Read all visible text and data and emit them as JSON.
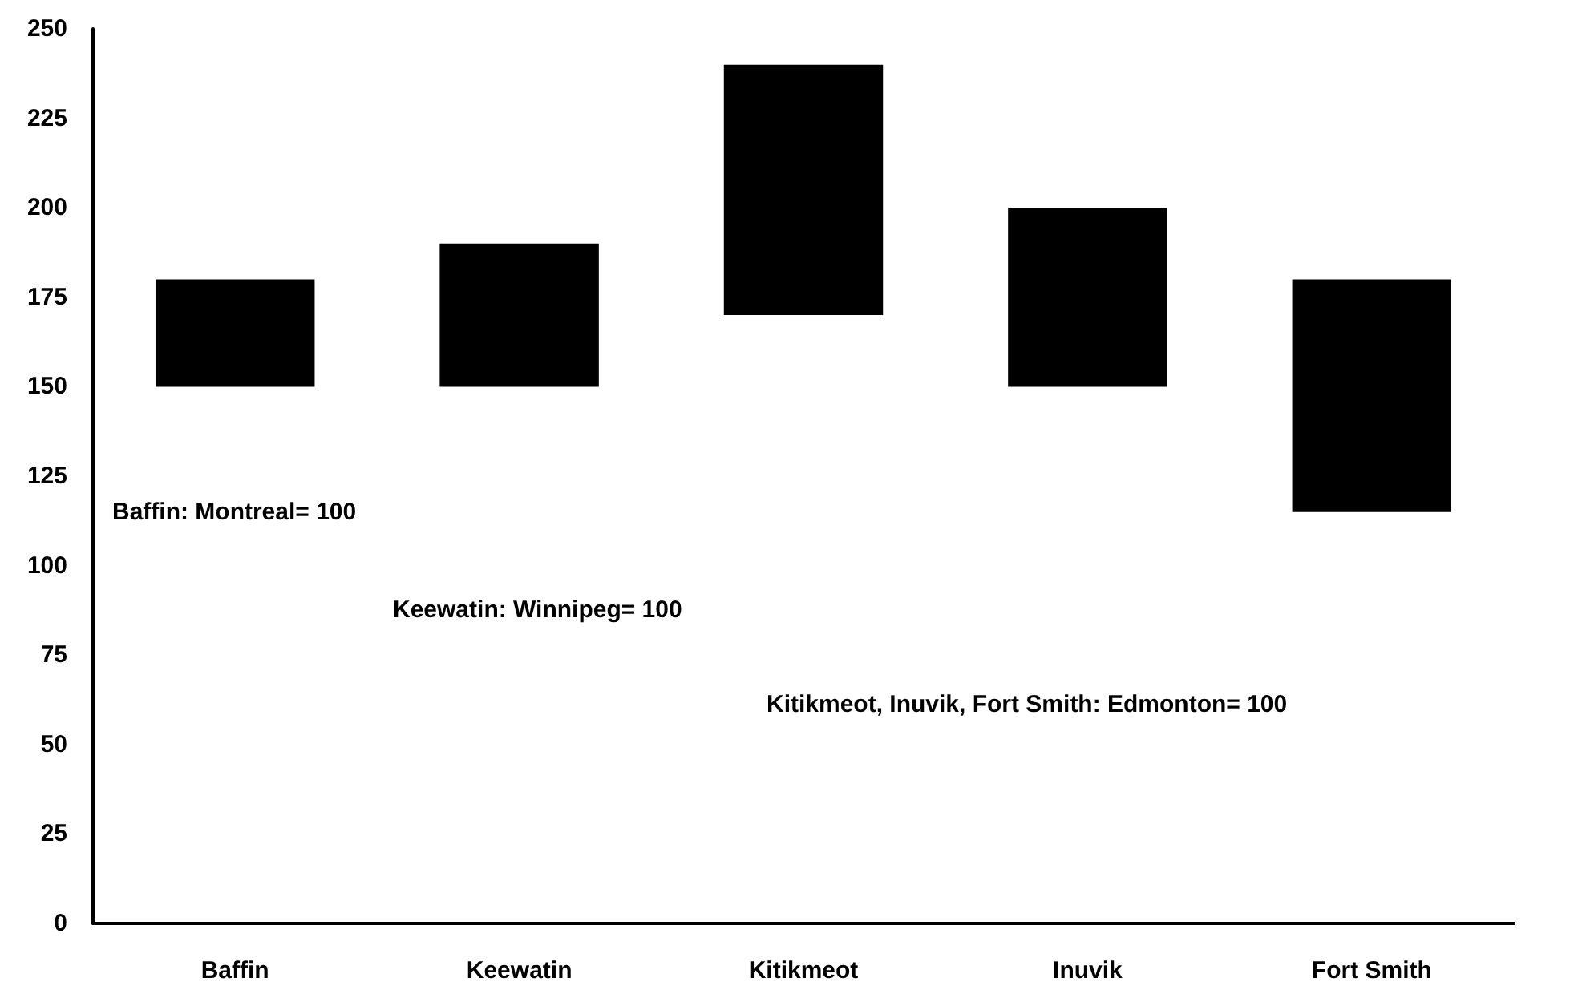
{
  "chart_data": {
    "type": "bar",
    "categories": [
      "Baffin",
      "Keewatin",
      "Kitikmeot",
      "Inuvik",
      "Fort Smith"
    ],
    "values": [
      30,
      40,
      70,
      50,
      65
    ],
    "base": [
      150,
      150,
      170,
      150,
      115
    ],
    "color": "#000000",
    "ylim": [
      0,
      250
    ],
    "yticks": [
      0,
      25,
      50,
      75,
      100,
      125,
      150,
      175,
      200,
      225,
      250
    ],
    "grid": false,
    "annotations": [
      "Baffin: Montreal= 100",
      "Keewatin: Winnipeg= 100",
      "Kitikmeot, Inuvik, Fort Smith: Edmonton= 100"
    ]
  }
}
